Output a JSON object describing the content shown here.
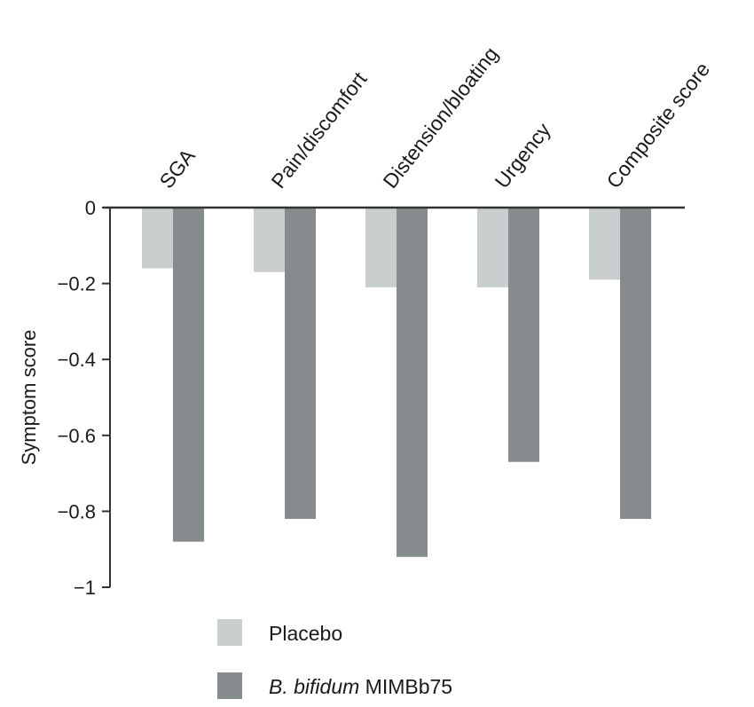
{
  "chart_data": {
    "type": "bar",
    "categories": [
      "SGA",
      "Pain/discomfort",
      "Distension/bloating",
      "Urgency",
      "Composite score"
    ],
    "series": [
      {
        "name": "Placebo",
        "values": [
          -0.16,
          -0.17,
          -0.21,
          -0.21,
          -0.19
        ],
        "color": "#c9cfcf"
      },
      {
        "name_italic": "B. bifidum",
        "name_rest": "MIMBb75",
        "values": [
          -0.88,
          -0.82,
          -0.92,
          -0.67,
          -0.82
        ],
        "color": "#868c8d"
      }
    ],
    "ylabel": "Symptom score",
    "yticks": [
      "0",
      "−0.2",
      "−0.4",
      "−0.6",
      "−0.8",
      "−1"
    ],
    "ytick_values": [
      0,
      -0.2,
      -0.4,
      -0.6,
      -0.8,
      -1
    ],
    "ylim": [
      -1,
      0
    ],
    "category_axis_position": "top",
    "category_label_rotation": "diagonal",
    "legend_position": "bottom-left",
    "grid": false
  }
}
